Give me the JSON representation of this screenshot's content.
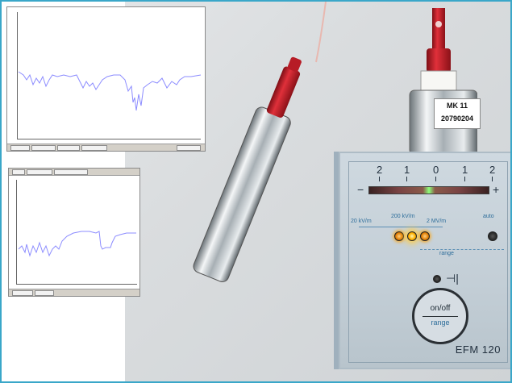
{
  "sensor": {
    "label_model": "MK 11",
    "label_serial": "20790204"
  },
  "meter": {
    "scale": [
      "2",
      "1",
      "0",
      "1",
      "2"
    ],
    "minus": "−",
    "plus": "+",
    "range_options": [
      "20 kV/m",
      "200 kV/m",
      "2 MV/m"
    ],
    "auto_label": "auto",
    "range_label": "range",
    "onoff_label": "on/off",
    "range_button_label": "range",
    "model": "EFM 120",
    "active_range": "200 kV/m"
  },
  "colors": {
    "frame": "#3aa7c9",
    "trace": "#8c8cff",
    "led_on": "#ffb000",
    "probe_red": "#d9232f"
  }
}
